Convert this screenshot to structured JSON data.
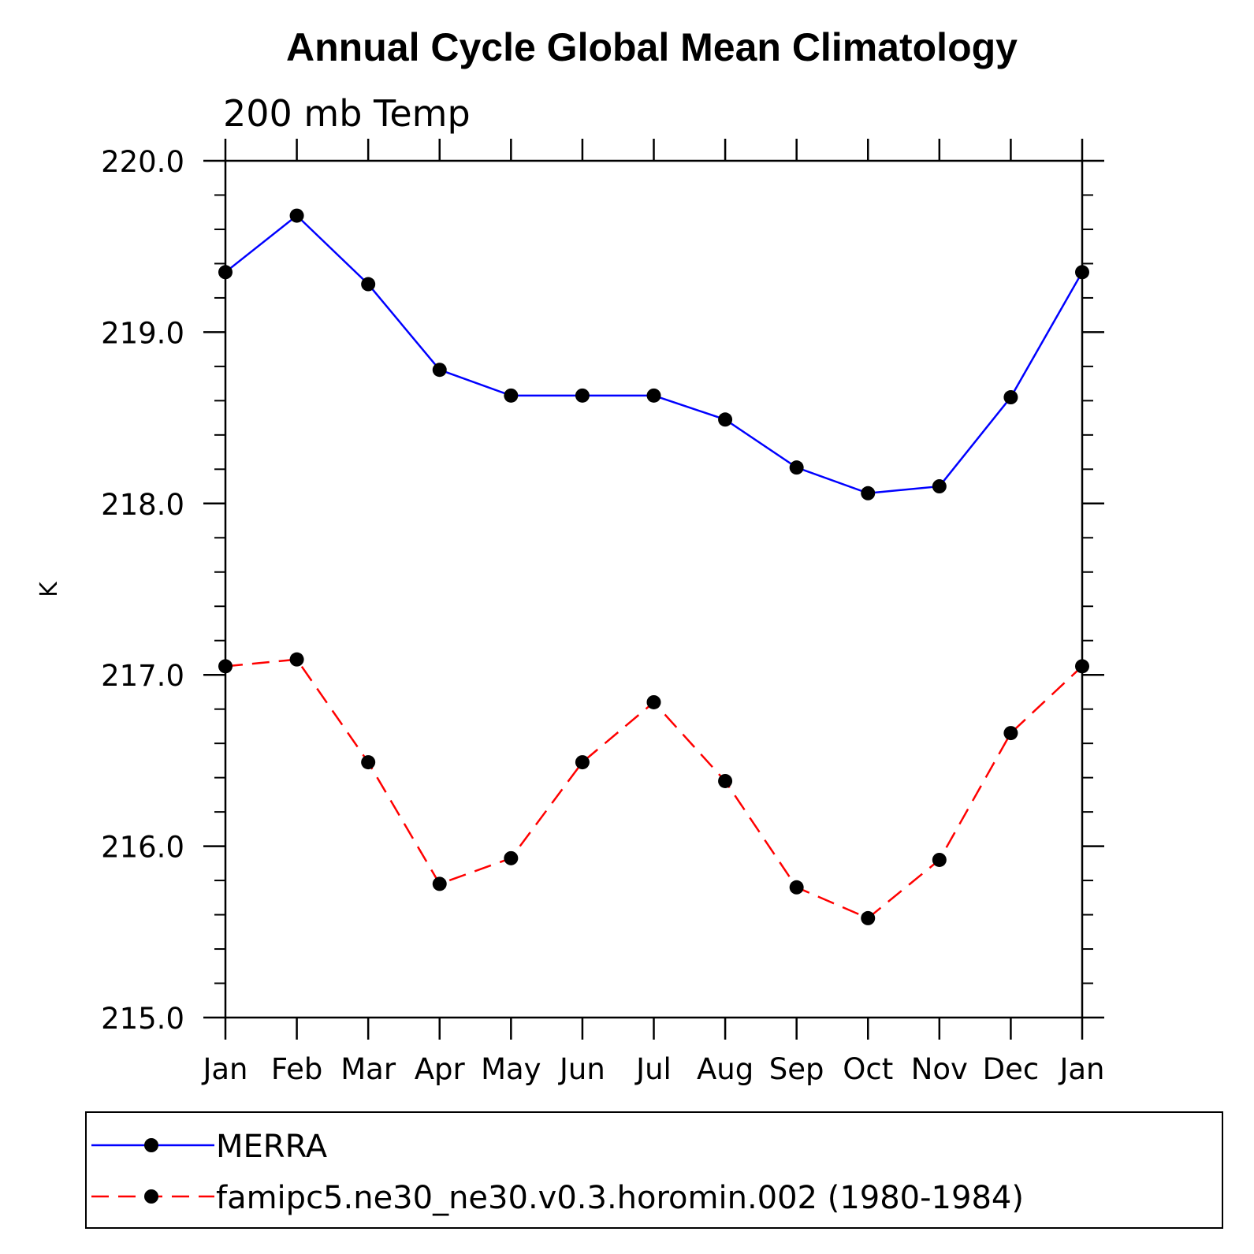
{
  "chart_data": {
    "type": "line",
    "title": "Annual Cycle Global Mean Climatology",
    "subtitle": "200 mb Temp",
    "ylabel": "K",
    "xlabel": "",
    "categories": [
      "Jan",
      "Feb",
      "Mar",
      "Apr",
      "May",
      "Jun",
      "Jul",
      "Aug",
      "Sep",
      "Oct",
      "Nov",
      "Dec",
      "Jan"
    ],
    "ylim": [
      215.0,
      220.0
    ],
    "yticks": [
      "215.0",
      "216.0",
      "217.0",
      "218.0",
      "219.0",
      "220.0"
    ],
    "grid": false,
    "legend_position": "bottom",
    "series": [
      {
        "name": "MERRA",
        "color": "#0000ff",
        "dash": "solid",
        "marker": "filled-circle",
        "values": [
          219.35,
          219.68,
          219.28,
          218.78,
          218.63,
          218.63,
          218.63,
          218.49,
          218.21,
          218.06,
          218.1,
          218.62,
          219.35
        ]
      },
      {
        "name": "famipc5.ne30_ne30.v0.3.horomin.002 (1980-1984)",
        "color": "#ff0000",
        "dash": "dashed",
        "marker": "filled-circle",
        "values": [
          217.05,
          217.09,
          216.49,
          215.78,
          215.93,
          216.49,
          216.84,
          216.38,
          215.76,
          215.58,
          215.92,
          216.66,
          217.05
        ]
      }
    ]
  }
}
